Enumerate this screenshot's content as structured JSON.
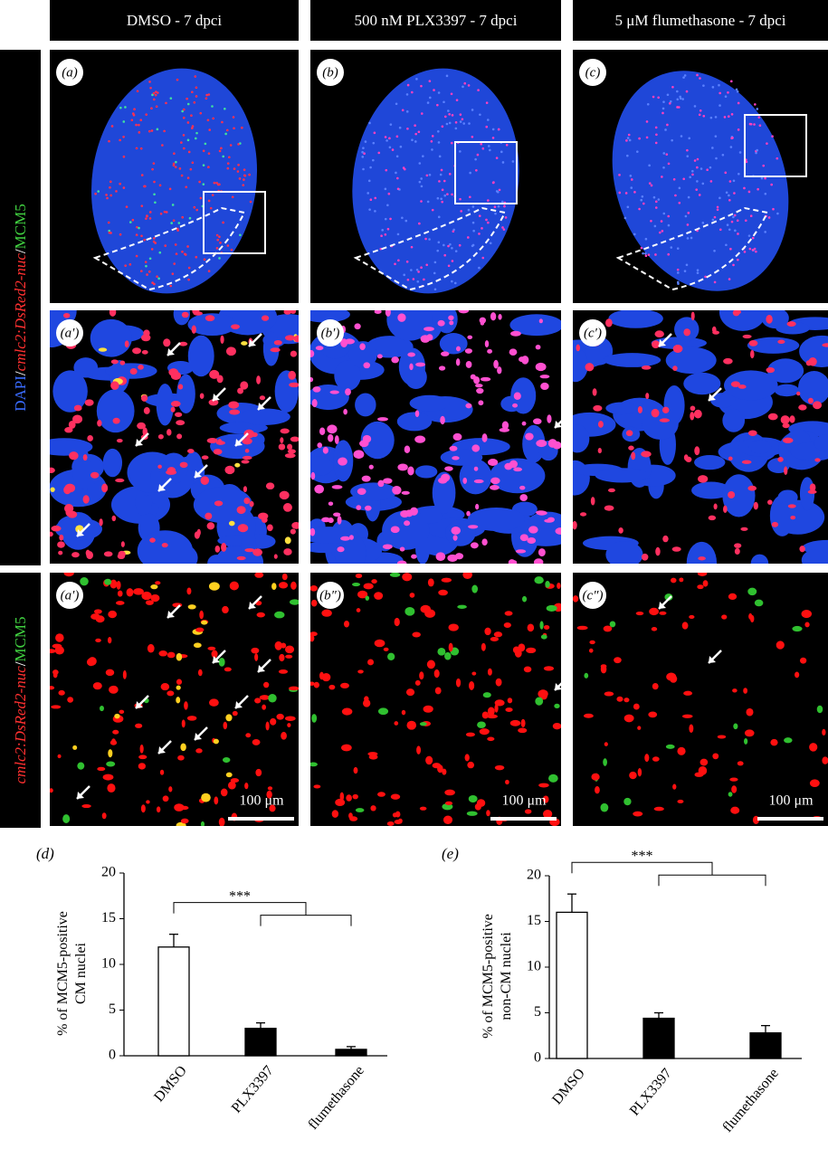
{
  "header": {
    "columns": [
      "DMSO - 7 dpci",
      "500 nM PLX3397 - 7 dpci",
      "5 μM flumethasone - 7 dpci"
    ]
  },
  "side_labels": [
    [
      {
        "text": "DAPI",
        "color": "#3a6cff"
      },
      {
        "text": "/",
        "color": "#ffffff"
      },
      {
        "text": "cmlc2:DsRed2-nuc",
        "color": "#ff3030"
      },
      {
        "text": "/",
        "color": "#ffffff"
      },
      {
        "text": "MCM5",
        "color": "#40d040"
      }
    ],
    [
      {
        "text": "cmlc2:DsRed2-nuc",
        "color": "#ff3030"
      },
      {
        "text": "/",
        "color": "#ffffff"
      },
      {
        "text": "MCM5",
        "color": "#40d040"
      }
    ]
  ],
  "panels": {
    "labels": [
      "(a)",
      "(b)",
      "(c)",
      "(a′)",
      "(b′)",
      "(c′)",
      "(a′)",
      "(b″)",
      "(c″)"
    ],
    "scale_bars": [
      "100 μm",
      "100 μm",
      "100 μm"
    ]
  },
  "chart_data": [
    {
      "type": "bar",
      "panel_label": "(d)",
      "y_label": [
        "% of MCM5-positive",
        "CM nuclei"
      ],
      "categories": [
        "DMSO",
        "PLX3397",
        "flumethasone"
      ],
      "values": [
        11.9,
        3.0,
        0.7
      ],
      "errors": [
        1.4,
        0.6,
        0.3
      ],
      "colors": [
        "#ffffff",
        "#000000",
        "#000000"
      ],
      "ylim": [
        0,
        20
      ],
      "yticks": [
        0,
        5,
        10,
        15,
        20
      ],
      "annotation": "***"
    },
    {
      "type": "bar",
      "panel_label": "(e)",
      "y_label": [
        "% of MCM5-positive",
        "non-CM nuclei"
      ],
      "categories": [
        "DMSO",
        "PLX3397",
        "flumethasone"
      ],
      "values": [
        16.0,
        4.4,
        2.8
      ],
      "errors": [
        2.0,
        0.6,
        0.8
      ],
      "colors": [
        "#ffffff",
        "#000000",
        "#000000"
      ],
      "ylim": [
        0,
        20
      ],
      "yticks": [
        0,
        5,
        10,
        15,
        20
      ],
      "annotation": "***"
    }
  ]
}
